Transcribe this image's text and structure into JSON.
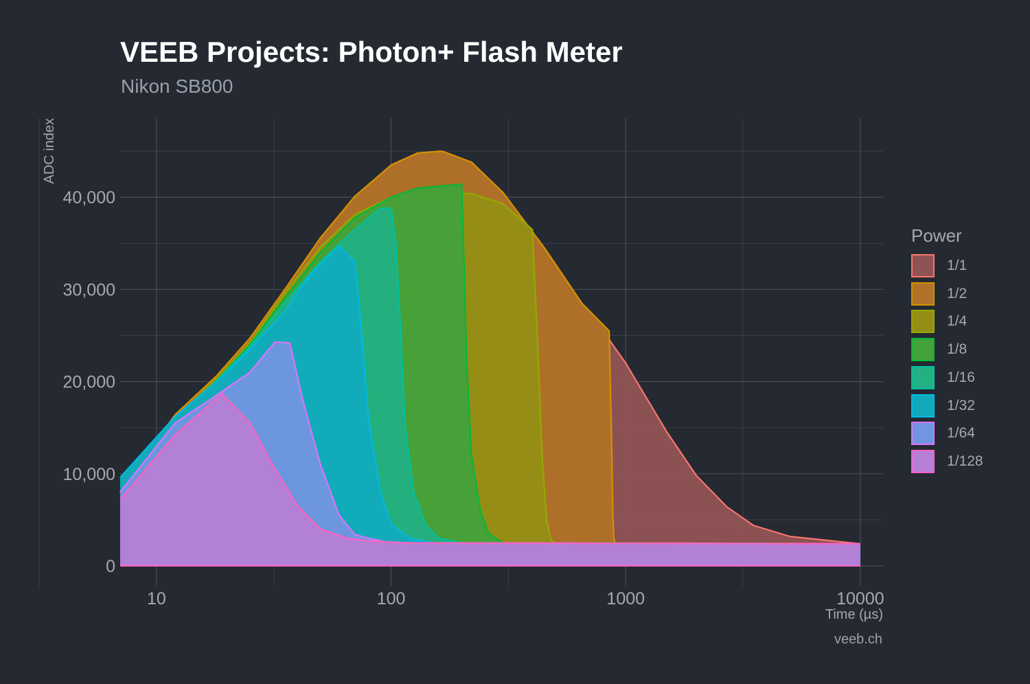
{
  "title": "VEEB Projects: Photon+ Flash Meter",
  "subtitle": "Nikon SB800",
  "caption": "veeb.ch",
  "chart_data": {
    "type": "area",
    "xlabel": "Time (µs)",
    "ylabel": "ADC index",
    "xscale": "log",
    "xlim": [
      7,
      12500
    ],
    "ylim": [
      0,
      46500
    ],
    "x_ticks": [
      10,
      100,
      1000,
      10000
    ],
    "x_tick_labels": [
      "10",
      "100",
      "1000",
      "10000"
    ],
    "y_ticks": [
      0,
      10000,
      20000,
      30000,
      40000
    ],
    "y_tick_labels": [
      "0",
      "10,000",
      "20,000",
      "30,000",
      "40,000"
    ],
    "grid": true,
    "legend_title": "Power",
    "legend_position": "right",
    "series": [
      {
        "name": "1/1",
        "color": "#f8766d",
        "fill": "#8f5355",
        "points": [
          [
            7,
            7800
          ],
          [
            12,
            16200
          ],
          [
            18,
            20500
          ],
          [
            25,
            24500
          ],
          [
            35,
            29800
          ],
          [
            50,
            35500
          ],
          [
            70,
            40000
          ],
          [
            100,
            43500
          ],
          [
            130,
            44800
          ],
          [
            165,
            45000
          ],
          [
            220,
            43800
          ],
          [
            300,
            40500
          ],
          [
            450,
            34500
          ],
          [
            650,
            28500
          ],
          [
            800,
            25500
          ],
          [
            1000,
            22000
          ],
          [
            1500,
            14500
          ],
          [
            2000,
            9800
          ],
          [
            2700,
            6400
          ],
          [
            3500,
            4400
          ],
          [
            5000,
            3200
          ],
          [
            7000,
            2800
          ],
          [
            10000,
            2400
          ]
        ]
      },
      {
        "name": "1/2",
        "color": "#d39200",
        "fill": "#b07228",
        "points": [
          [
            7,
            8200
          ],
          [
            12,
            16400
          ],
          [
            18,
            20600
          ],
          [
            25,
            24700
          ],
          [
            35,
            29900
          ],
          [
            50,
            35600
          ],
          [
            70,
            40100
          ],
          [
            100,
            43500
          ],
          [
            130,
            44800
          ],
          [
            165,
            45000
          ],
          [
            220,
            43800
          ],
          [
            300,
            40500
          ],
          [
            450,
            34500
          ],
          [
            650,
            28500
          ],
          [
            850,
            25500
          ],
          [
            870,
            14000
          ],
          [
            880,
            6000
          ],
          [
            890,
            3000
          ],
          [
            900,
            2500
          ],
          [
            10000,
            2400
          ]
        ]
      },
      {
        "name": "1/4",
        "color": "#93aa00",
        "fill": "#958e16",
        "points": [
          [
            7,
            8600
          ],
          [
            12,
            16000
          ],
          [
            18,
            20300
          ],
          [
            25,
            24200
          ],
          [
            35,
            29500
          ],
          [
            50,
            34600
          ],
          [
            70,
            38100
          ],
          [
            100,
            40000
          ],
          [
            150,
            40500
          ],
          [
            220,
            40400
          ],
          [
            300,
            39300
          ],
          [
            400,
            36500
          ],
          [
            420,
            25000
          ],
          [
            440,
            12000
          ],
          [
            460,
            5000
          ],
          [
            480,
            2800
          ],
          [
            500,
            2500
          ],
          [
            10000,
            2400
          ]
        ]
      },
      {
        "name": "1/8",
        "color": "#00ba38",
        "fill": "#44a23a",
        "points": [
          [
            7,
            9000
          ],
          [
            12,
            16000
          ],
          [
            18,
            20100
          ],
          [
            25,
            24000
          ],
          [
            35,
            29000
          ],
          [
            50,
            34000
          ],
          [
            70,
            37800
          ],
          [
            100,
            40000
          ],
          [
            130,
            41000
          ],
          [
            200,
            41400
          ],
          [
            205,
            32000
          ],
          [
            210,
            22000
          ],
          [
            220,
            12000
          ],
          [
            240,
            6000
          ],
          [
            260,
            3500
          ],
          [
            300,
            2500
          ],
          [
            10000,
            2400
          ]
        ]
      },
      {
        "name": "1/16",
        "color": "#00c19f",
        "fill": "#23b082",
        "points": [
          [
            7,
            9400
          ],
          [
            12,
            16000
          ],
          [
            18,
            20000
          ],
          [
            25,
            23800
          ],
          [
            35,
            28500
          ],
          [
            50,
            33000
          ],
          [
            70,
            36500
          ],
          [
            90,
            38800
          ],
          [
            100,
            38800
          ],
          [
            105,
            35000
          ],
          [
            110,
            25000
          ],
          [
            115,
            15000
          ],
          [
            125,
            8000
          ],
          [
            140,
            4500
          ],
          [
            160,
            3000
          ],
          [
            200,
            2500
          ],
          [
            10000,
            2400
          ]
        ]
      },
      {
        "name": "1/32",
        "color": "#00b9e3",
        "fill": "#12aabb",
        "points": [
          [
            7,
            9600
          ],
          [
            12,
            16200
          ],
          [
            18,
            20000
          ],
          [
            25,
            23500
          ],
          [
            35,
            27500
          ],
          [
            45,
            31500
          ],
          [
            60,
            34700
          ],
          [
            70,
            33000
          ],
          [
            75,
            25000
          ],
          [
            80,
            16000
          ],
          [
            90,
            8000
          ],
          [
            100,
            4500
          ],
          [
            120,
            3000
          ],
          [
            150,
            2500
          ],
          [
            10000,
            2400
          ]
        ]
      },
      {
        "name": "1/64",
        "color": "#db72fb",
        "fill": "#7096e0",
        "points": [
          [
            7,
            8000
          ],
          [
            12,
            15500
          ],
          [
            18,
            18500
          ],
          [
            25,
            21000
          ],
          [
            32,
            24300
          ],
          [
            37,
            24200
          ],
          [
            42,
            18000
          ],
          [
            50,
            11000
          ],
          [
            60,
            5500
          ],
          [
            70,
            3400
          ],
          [
            80,
            3000
          ],
          [
            100,
            2500
          ],
          [
            10000,
            2400
          ]
        ]
      },
      {
        "name": "1/128",
        "color": "#ff61c3",
        "fill": "#b57fd6",
        "points": [
          [
            7,
            7200
          ],
          [
            12,
            14200
          ],
          [
            19,
            18700
          ],
          [
            25,
            15500
          ],
          [
            32,
            10500
          ],
          [
            40,
            6500
          ],
          [
            50,
            4000
          ],
          [
            65,
            3000
          ],
          [
            80,
            2700
          ],
          [
            120,
            2500
          ],
          [
            10000,
            2400
          ]
        ]
      }
    ]
  }
}
